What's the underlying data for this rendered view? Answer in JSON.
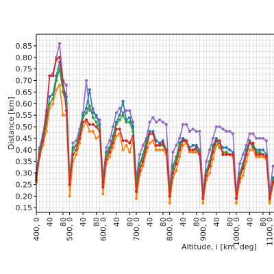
{
  "chart_data": {
    "type": "line",
    "title": "",
    "xlabel": "Altitude, i [km, deg]",
    "ylabel": "Distance [km]",
    "ylim": [
      0.13,
      0.9
    ],
    "grid": true,
    "legend": "none",
    "yticks": [
      "0.15",
      "0.20",
      "0.25",
      "0.30",
      "0.35",
      "0.40",
      "0.45",
      "0.50",
      "0.55",
      "0.60",
      "0.65",
      "0.70",
      "0.75",
      "0.80",
      "0.85"
    ],
    "xtick_labels": [
      {
        "x": 0,
        "label": "400, 0"
      },
      {
        "x": 4,
        "label": "40"
      },
      {
        "x": 8,
        "label": "80"
      },
      {
        "x": 10,
        "label": "500, 0"
      },
      {
        "x": 14,
        "label": "40"
      },
      {
        "x": 18,
        "label": "80"
      },
      {
        "x": 20,
        "label": "600, 0"
      },
      {
        "x": 24,
        "label": "40"
      },
      {
        "x": 28,
        "label": "80"
      },
      {
        "x": 30,
        "label": "700, 0"
      },
      {
        "x": 34,
        "label": "40"
      },
      {
        "x": 38,
        "label": "80"
      },
      {
        "x": 40,
        "label": "800, 0"
      },
      {
        "x": 44,
        "label": "40"
      },
      {
        "x": 48,
        "label": "80"
      },
      {
        "x": 50,
        "label": "900, 0"
      },
      {
        "x": 54,
        "label": "40"
      },
      {
        "x": 58,
        "label": "80"
      },
      {
        "x": 60,
        "label": "1000, 0"
      },
      {
        "x": 64,
        "label": "40"
      },
      {
        "x": 68,
        "label": "80"
      },
      {
        "x": 70,
        "label": "1100, 0"
      }
    ],
    "xlim": [
      0,
      71.3
    ],
    "colors": {
      "purple": "#9467bd",
      "blue": "#1f77b4",
      "green": "#2ca02c",
      "orange": "#ff7f0e",
      "red": "#d62728"
    },
    "series": [
      {
        "color": "#9467bd",
        "values": [
          0.3,
          0.41,
          0.47,
          0.57,
          0.72,
          0.73,
          0.8,
          0.86,
          0.7,
          0.68,
          0.28,
          0.43,
          0.44,
          0.49,
          0.56,
          0.7,
          0.57,
          0.58,
          0.54,
          0.53,
          0.28,
          0.41,
          0.44,
          0.5,
          0.56,
          0.58,
          0.56,
          0.57,
          0.57,
          0.52,
          0.28,
          0.38,
          0.42,
          0.45,
          0.52,
          0.54,
          0.52,
          0.53,
          0.52,
          0.51,
          0.24,
          0.39,
          0.42,
          0.45,
          0.51,
          0.51,
          0.48,
          0.49,
          0.48,
          0.48,
          0.22,
          0.35,
          0.4,
          0.45,
          0.5,
          0.5,
          0.49,
          0.48,
          0.48,
          0.47,
          0.22,
          0.34,
          0.38,
          0.42,
          0.47,
          0.47,
          0.45,
          0.45,
          0.45,
          0.44,
          0.22,
          0.33
        ]
      },
      {
        "color": "#1f77b4",
        "values": [
          0.29,
          0.4,
          0.46,
          0.52,
          0.63,
          0.64,
          0.72,
          0.78,
          0.68,
          0.63,
          0.27,
          0.41,
          0.42,
          0.47,
          0.55,
          0.58,
          0.66,
          0.56,
          0.55,
          0.51,
          0.26,
          0.39,
          0.41,
          0.46,
          0.52,
          0.55,
          0.61,
          0.53,
          0.54,
          0.5,
          0.26,
          0.34,
          0.38,
          0.44,
          0.48,
          0.48,
          0.44,
          0.43,
          0.44,
          0.4,
          0.22,
          0.33,
          0.37,
          0.43,
          0.45,
          0.44,
          0.41,
          0.42,
          0.42,
          0.4,
          0.2,
          0.31,
          0.35,
          0.42,
          0.45,
          0.43,
          0.41,
          0.41,
          0.4,
          0.39,
          0.19,
          0.3,
          0.34,
          0.4,
          0.44,
          0.42,
          0.4,
          0.4,
          0.4,
          0.38,
          0.2,
          0.28
        ]
      },
      {
        "color": "#2ca02c",
        "values": [
          0.28,
          0.39,
          0.44,
          0.5,
          0.6,
          0.62,
          0.7,
          0.75,
          0.65,
          0.6,
          0.26,
          0.4,
          0.42,
          0.46,
          0.54,
          0.56,
          0.59,
          0.54,
          0.52,
          0.49,
          0.25,
          0.38,
          0.4,
          0.45,
          0.51,
          0.53,
          0.55,
          0.52,
          0.52,
          0.48,
          0.25,
          0.33,
          0.37,
          0.43,
          0.47,
          0.47,
          0.42,
          0.42,
          0.42,
          0.39,
          0.22,
          0.32,
          0.36,
          0.42,
          0.44,
          0.43,
          0.4,
          0.4,
          0.4,
          0.38,
          0.19,
          0.3,
          0.34,
          0.41,
          0.44,
          0.41,
          0.39,
          0.39,
          0.38,
          0.38,
          0.19,
          0.29,
          0.33,
          0.39,
          0.43,
          0.41,
          0.39,
          0.39,
          0.38,
          0.37,
          0.18,
          0.27
        ]
      },
      {
        "color": "#ff7f0e",
        "values": [
          0.26,
          0.37,
          0.42,
          0.48,
          0.58,
          0.6,
          0.66,
          0.68,
          0.55,
          0.55,
          0.2,
          0.35,
          0.38,
          0.43,
          0.5,
          0.52,
          0.48,
          0.48,
          0.45,
          0.46,
          0.21,
          0.34,
          0.37,
          0.41,
          0.46,
          0.47,
          0.4,
          0.42,
          0.39,
          0.44,
          0.19,
          0.29,
          0.33,
          0.39,
          0.43,
          0.44,
          0.4,
          0.4,
          0.4,
          0.38,
          0.17,
          0.28,
          0.31,
          0.37,
          0.42,
          0.43,
          0.39,
          0.39,
          0.39,
          0.38,
          0.17,
          0.27,
          0.3,
          0.36,
          0.42,
          0.42,
          0.38,
          0.38,
          0.38,
          0.37,
          0.17,
          0.26,
          0.29,
          0.35,
          0.4,
          0.4,
          0.37,
          0.37,
          0.37,
          0.36,
          0.17,
          0.25
        ]
      },
      {
        "color": "#d62728",
        "values": [
          0.27,
          0.38,
          0.44,
          0.55,
          0.72,
          0.72,
          0.79,
          0.8,
          0.7,
          0.57,
          0.25,
          0.38,
          0.4,
          0.45,
          0.52,
          0.53,
          0.51,
          0.51,
          0.5,
          0.48,
          0.24,
          0.36,
          0.39,
          0.43,
          0.49,
          0.49,
          0.44,
          0.44,
          0.43,
          0.46,
          0.22,
          0.31,
          0.35,
          0.41,
          0.47,
          0.47,
          0.42,
          0.42,
          0.43,
          0.4,
          0.2,
          0.3,
          0.34,
          0.4,
          0.44,
          0.44,
          0.4,
          0.4,
          0.41,
          0.38,
          0.19,
          0.29,
          0.33,
          0.39,
          0.44,
          0.44,
          0.38,
          0.38,
          0.38,
          0.38,
          0.19,
          0.28,
          0.32,
          0.38,
          0.43,
          0.43,
          0.38,
          0.38,
          0.38,
          0.37,
          0.19,
          0.26
        ]
      }
    ]
  }
}
